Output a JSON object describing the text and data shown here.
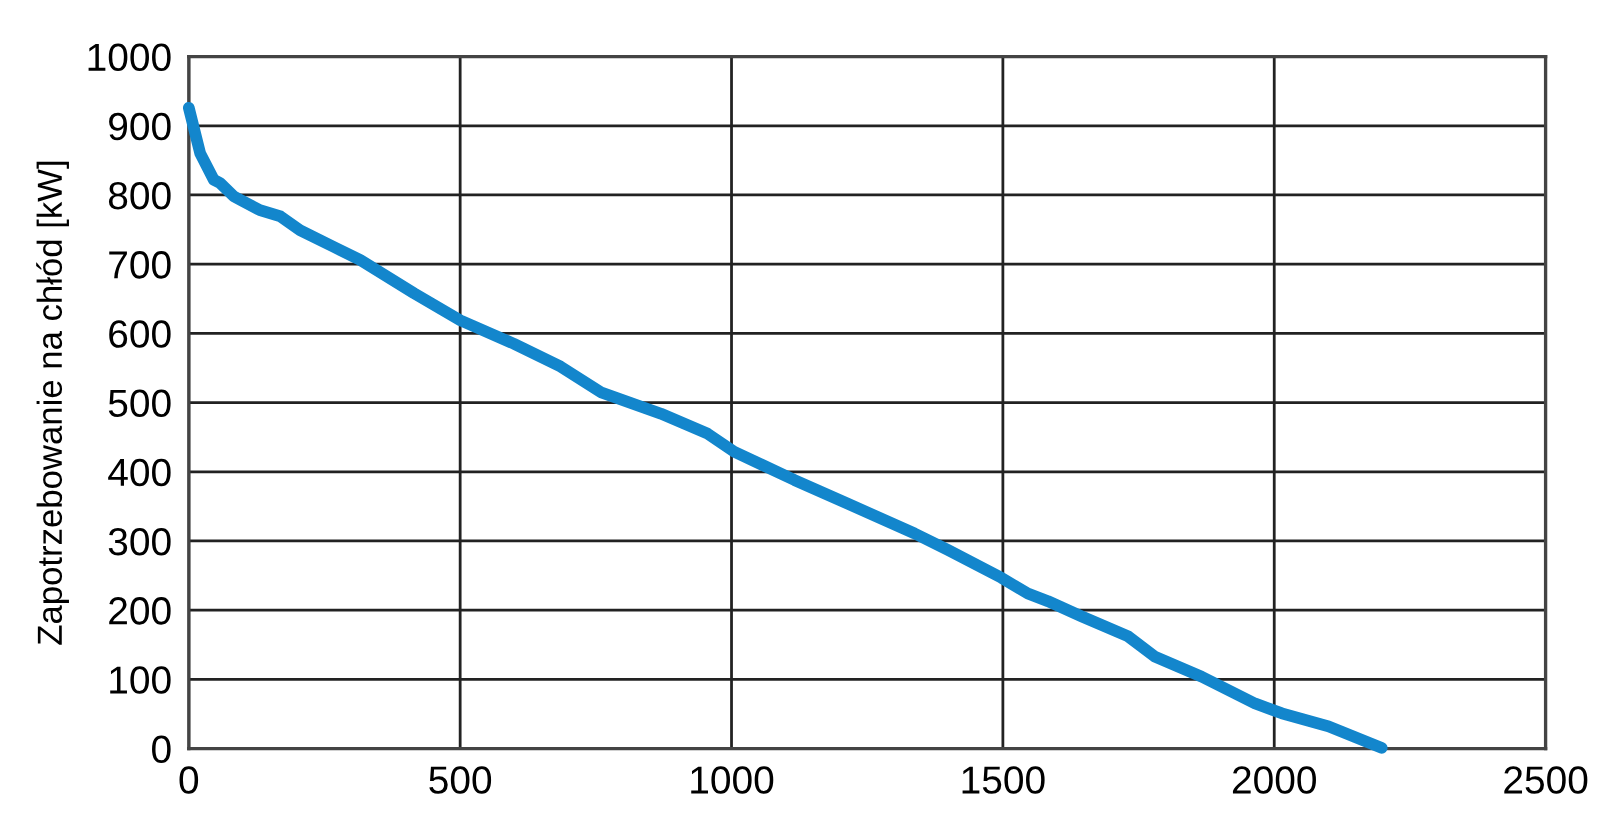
{
  "chart_data": {
    "type": "line",
    "ylabel": "Zapotrzebowanie na chłód [kW]",
    "x": [
      0,
      21,
      46,
      58,
      83,
      95,
      131,
      169,
      205,
      267,
      316,
      415,
      500,
      599,
      685,
      759,
      870,
      956,
      1005,
      1116,
      1214,
      1337,
      1399,
      1497,
      1546,
      1583,
      1645,
      1731,
      1780,
      1866,
      1965,
      2014,
      2100,
      2198
    ],
    "series": [
      {
        "color": "#1386cc",
        "values": [
          926,
          860,
          822,
          817,
          798,
          793,
          778,
          769,
          749,
          725,
          706,
          658,
          619,
          585,
          552,
          515,
          484,
          455,
          429,
          388,
          354,
          311,
          287,
          247,
          224,
          213,
          191,
          162,
          133,
          104,
          65,
          51,
          32,
          1
        ]
      }
    ],
    "xlim": [
      0,
      2500
    ],
    "ylim": [
      0,
      1000
    ],
    "xticks": [
      0,
      500,
      1000,
      1500,
      2000,
      2500
    ],
    "yticks": [
      0,
      100,
      200,
      300,
      400,
      500,
      600,
      700,
      800,
      900,
      1000
    ],
    "grid": true,
    "line_style": "solid"
  }
}
